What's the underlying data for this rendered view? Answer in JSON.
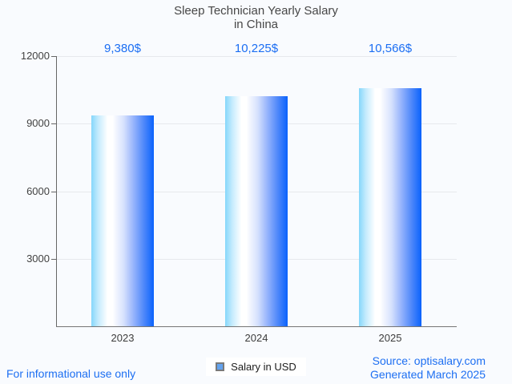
{
  "page": {
    "background": "#f9fbfe"
  },
  "title": {
    "line1": "Sleep Technician Yearly Salary",
    "line2": "in China"
  },
  "chart_data": {
    "type": "bar",
    "title": "Sleep Technician Yearly Salary in China",
    "categories": [
      "2023",
      "2024",
      "2025"
    ],
    "series": [
      {
        "name": "Salary in USD",
        "values": [
          9380,
          10225,
          10566
        ]
      }
    ],
    "value_labels": [
      "9,380$",
      "10,225$",
      "10,566$"
    ],
    "xlabel": "",
    "ylabel": "",
    "ylim": [
      0,
      12000
    ],
    "yticks": [
      3000,
      6000,
      9000,
      12000
    ],
    "ytick_labels": [
      "3000",
      "6000",
      "9000",
      "12000"
    ],
    "grid": true,
    "legend_position": "bottom-center",
    "bar_gradient": [
      "#85d7fb",
      "#ffffff",
      "#0a62fc"
    ]
  },
  "legend": {
    "label": "Salary in USD",
    "swatch_fill": "#63a3ef",
    "swatch_border": "#7a7a7a"
  },
  "footer": {
    "left_note": "For informational use only",
    "source_line1": "Source: optisalary.com",
    "source_line2": "Generated March 2025"
  },
  "colors": {
    "accent_blue": "#1b6ef3",
    "title_text": "#474747",
    "axis_text": "#424242",
    "axis_line": "#666666",
    "gridline": "#e7e9ed"
  }
}
